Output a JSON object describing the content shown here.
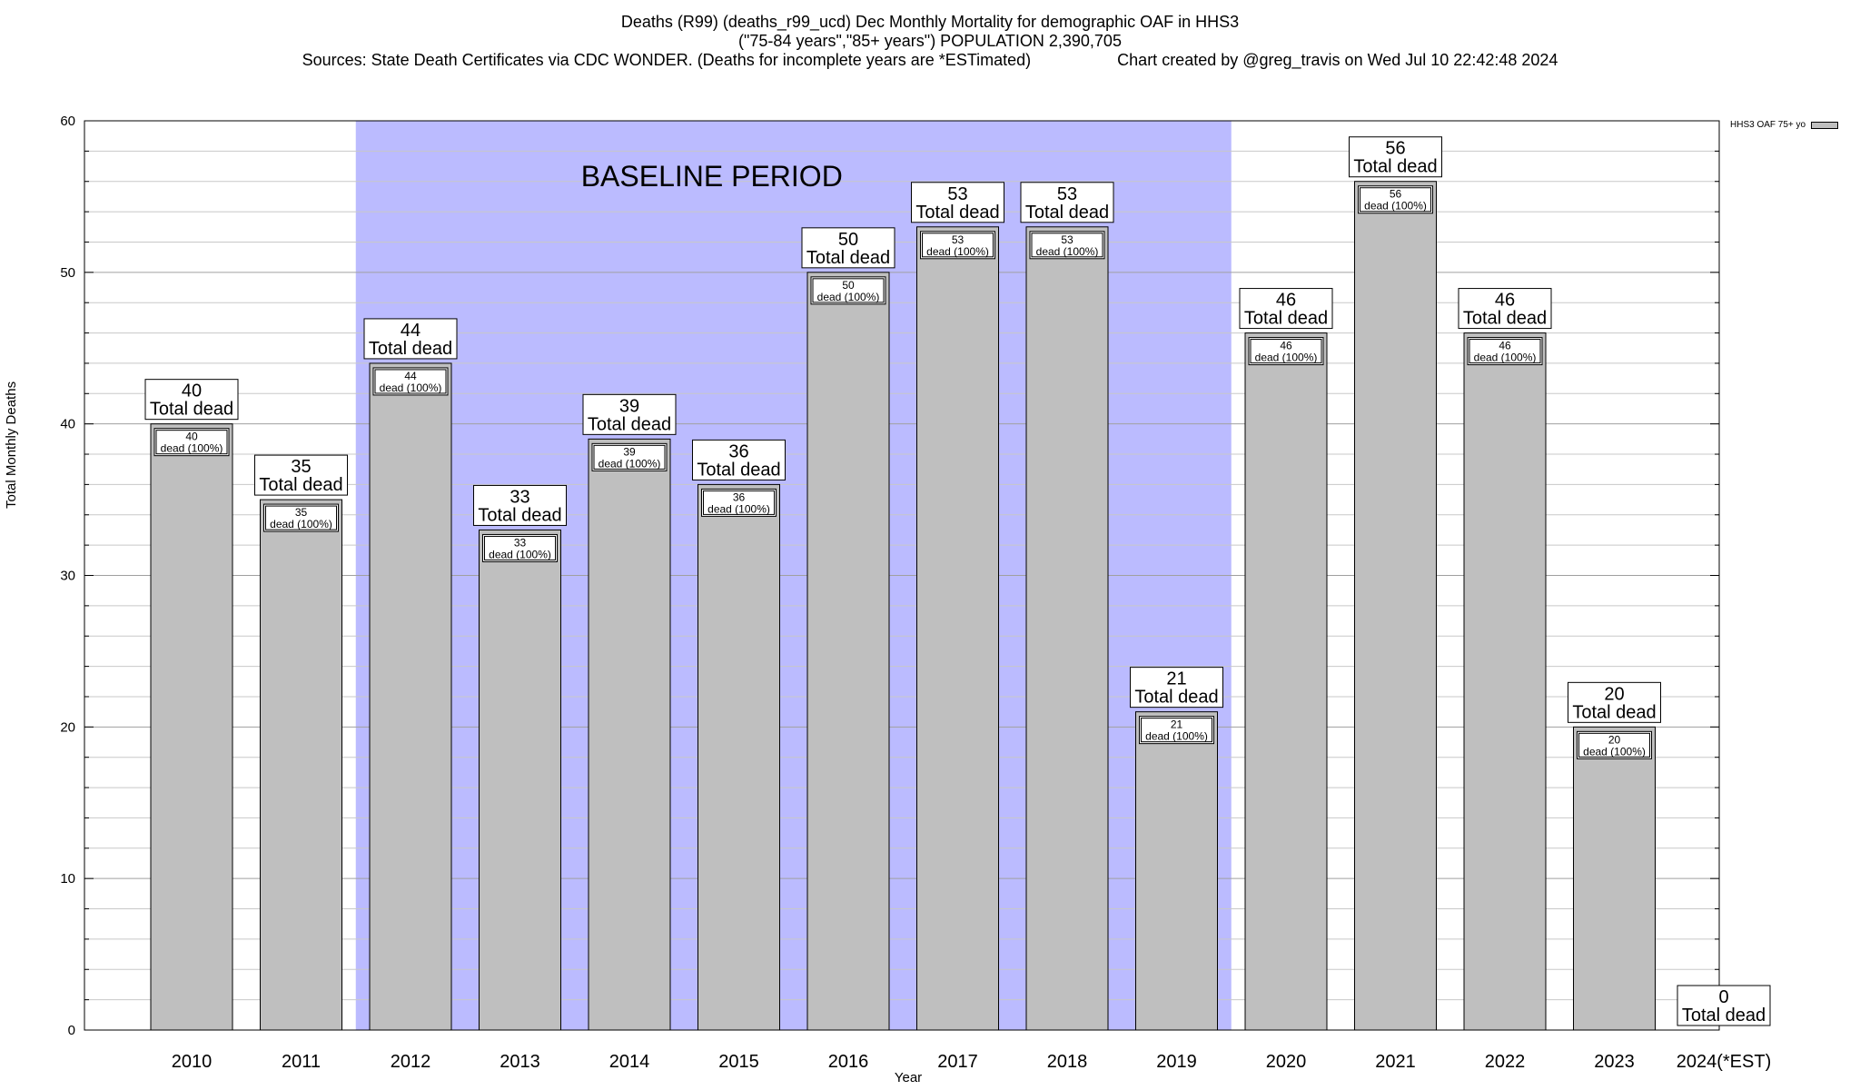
{
  "header": {
    "line1": "Deaths (R99) (deaths_r99_ucd) Dec Monthly Mortality for demographic OAF in HHS3",
    "line2": "(\"75-84 years\",\"85+ years\") POPULATION 2,390,705",
    "sources": "Sources: State Death Certificates via CDC WONDER. (Deaths for incomplete years are *ESTimated)",
    "credit": "Chart created by @greg_travis on Wed Jul 10 22:42:48 2024"
  },
  "legend": {
    "label": "HHS3 OAF 75+ yo"
  },
  "chart_data": {
    "type": "bar",
    "title": "Deaths (R99) (deaths_r99_ucd) Dec Monthly Mortality for demographic OAF in HHS3",
    "xlabel": "Year",
    "ylabel": "Total Monthly Deaths",
    "ylim": [
      0,
      60
    ],
    "yticks": [
      0,
      10,
      20,
      30,
      40,
      50,
      60
    ],
    "categories": [
      "2010",
      "2011",
      "2012",
      "2013",
      "2014",
      "2015",
      "2016",
      "2017",
      "2018",
      "2019",
      "2020",
      "2021",
      "2022",
      "2023",
      "2024(*EST)"
    ],
    "series": [
      {
        "name": "HHS3 OAF 75+ yo",
        "values": [
          40,
          35,
          44,
          33,
          39,
          36,
          50,
          53,
          53,
          21,
          46,
          56,
          46,
          20,
          0
        ]
      }
    ],
    "total_label": "Total dead",
    "inner_label": "dead (100%)",
    "baseline": {
      "label": "BASELINE PERIOD",
      "from": "2012",
      "to": "2019"
    },
    "colors": {
      "bar": "#bfbfbf",
      "baseline": "#bbbbff",
      "grid": "#c8c8c8"
    },
    "grid": true,
    "legend_position": "top-right"
  }
}
